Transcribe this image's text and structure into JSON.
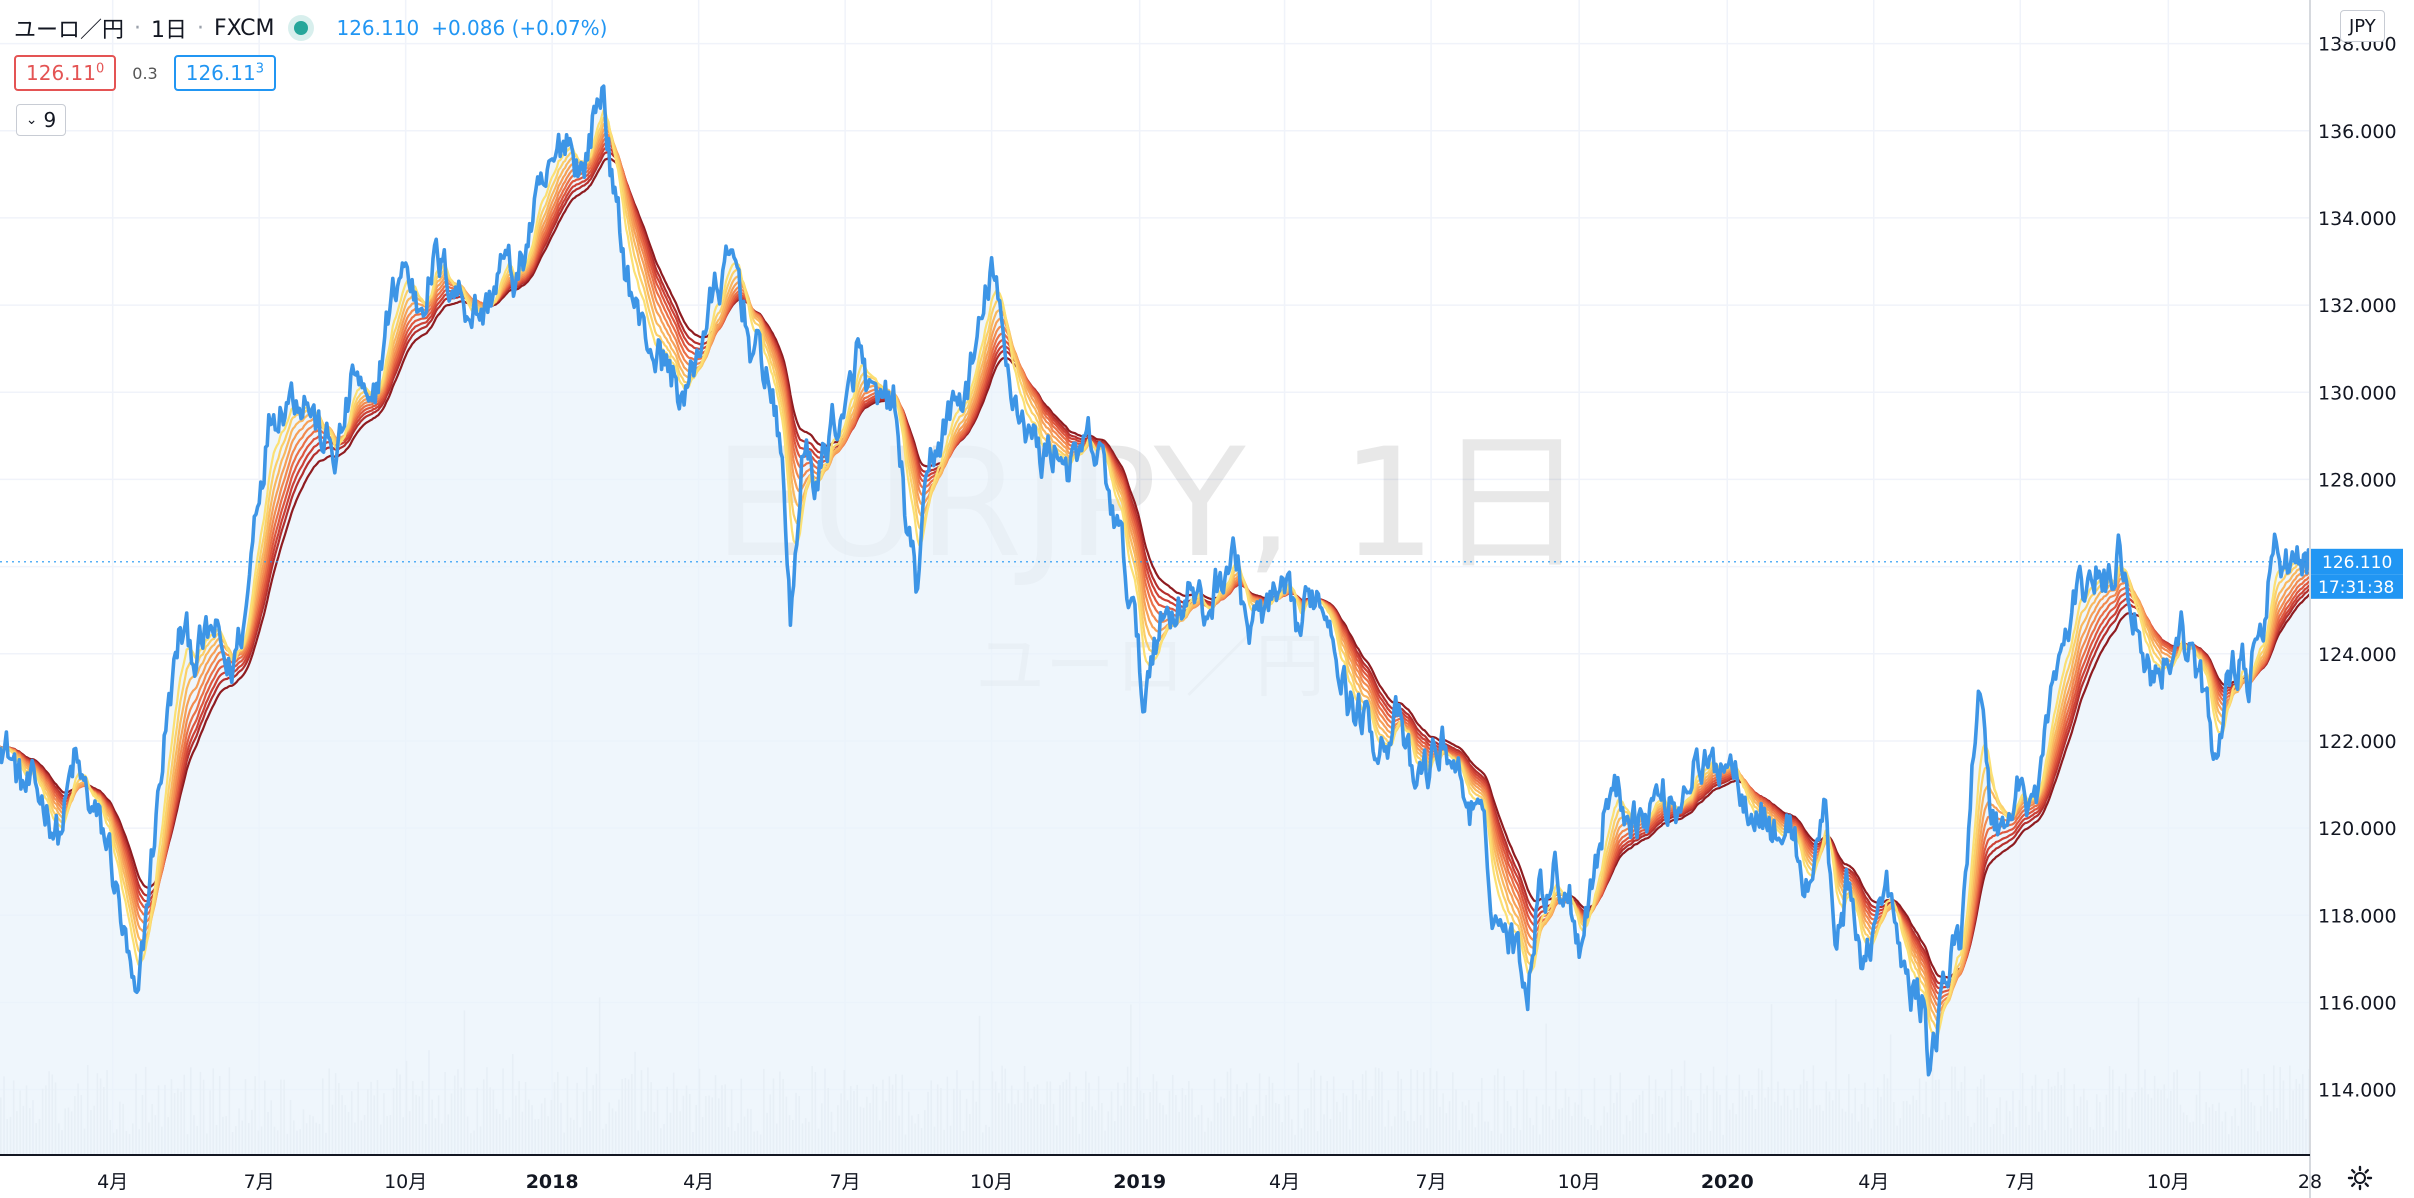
{
  "header": {
    "symbol": "ユーロ／円",
    "interval": "1日",
    "exchange": "FXCM",
    "last": "126.110",
    "change": "+0.086 (+0.07%)"
  },
  "quote": {
    "bid_main": "126.11",
    "bid_pip": "0",
    "spread": "0.3",
    "ask_main": "126.11",
    "ask_pip": "3"
  },
  "indicators_toggle": {
    "count": "9"
  },
  "currency_button": "JPY",
  "watermark": {
    "main": "EURJPY, 1日",
    "sub": "ユーロ／円"
  },
  "price_label": {
    "price": "126.110",
    "countdown": "17:31:38"
  },
  "colors": {
    "price_line": "#3d95e6",
    "area_fill": "#eaf3fb",
    "ribbon": [
      "#fbe074",
      "#fbd06a",
      "#f9b860",
      "#f6a058",
      "#f28a50",
      "#ea7047",
      "#de573e",
      "#cd4236",
      "#b5302e",
      "#8f1c20"
    ]
  },
  "chart_data": {
    "type": "line",
    "title": "EURJPY, 1日",
    "y_axis": {
      "ylim": [
        112.5,
        139.0
      ],
      "ticks": [
        "114.000",
        "116.000",
        "118.000",
        "120.000",
        "122.000",
        "124.000",
        "126.000",
        "128.000",
        "130.000",
        "132.000",
        "134.000",
        "136.000",
        "138.000"
      ],
      "position": "right"
    },
    "x_axis": {
      "xlim": [
        "2017-01-23",
        "2020-12-28"
      ],
      "ticks": [
        {
          "label": "4月",
          "date": "2017-04-03",
          "bold": false
        },
        {
          "label": "7月",
          "date": "2017-07-03",
          "bold": false
        },
        {
          "label": "10月",
          "date": "2017-10-02",
          "bold": false
        },
        {
          "label": "2018",
          "date": "2018-01-01",
          "bold": true
        },
        {
          "label": "4月",
          "date": "2018-04-02",
          "bold": false
        },
        {
          "label": "7月",
          "date": "2018-07-02",
          "bold": false
        },
        {
          "label": "10月",
          "date": "2018-10-01",
          "bold": false
        },
        {
          "label": "2019",
          "date": "2019-01-01",
          "bold": true
        },
        {
          "label": "4月",
          "date": "2019-04-01",
          "bold": false
        },
        {
          "label": "7月",
          "date": "2019-07-01",
          "bold": false
        },
        {
          "label": "10月",
          "date": "2019-10-01",
          "bold": false
        },
        {
          "label": "2020",
          "date": "2020-01-01",
          "bold": true
        },
        {
          "label": "4月",
          "date": "2020-04-01",
          "bold": false
        },
        {
          "label": "7月",
          "date": "2020-07-01",
          "bold": false
        },
        {
          "label": "10月",
          "date": "2020-10-01",
          "bold": false
        },
        {
          "label": "28",
          "date": "2020-12-28",
          "bold": false
        }
      ]
    },
    "grid": true,
    "legend": "none",
    "series": [
      {
        "name": "EURJPY",
        "points": [
          [
            "2017-01-23",
            122.3
          ],
          [
            "2017-02-05",
            121.0
          ],
          [
            "2017-02-20",
            120.6
          ],
          [
            "2017-03-01",
            119.8
          ],
          [
            "2017-03-10",
            121.5
          ],
          [
            "2017-03-20",
            120.5
          ],
          [
            "2017-04-01",
            119.5
          ],
          [
            "2017-04-10",
            117.5
          ],
          [
            "2017-04-18",
            115.6
          ],
          [
            "2017-04-25",
            118.5
          ],
          [
            "2017-05-05",
            122.0
          ],
          [
            "2017-05-15",
            124.5
          ],
          [
            "2017-05-25",
            124.0
          ],
          [
            "2017-06-05",
            124.5
          ],
          [
            "2017-06-15",
            123.5
          ],
          [
            "2017-06-25",
            125.0
          ],
          [
            "2017-07-01",
            127.5
          ],
          [
            "2017-07-10",
            129.5
          ],
          [
            "2017-07-20",
            130.0
          ],
          [
            "2017-08-01",
            130.0
          ],
          [
            "2017-08-10",
            129.0
          ],
          [
            "2017-08-20",
            128.5
          ],
          [
            "2017-09-01",
            130.5
          ],
          [
            "2017-09-10",
            129.2
          ],
          [
            "2017-09-20",
            131.5
          ],
          [
            "2017-09-30",
            133.0
          ],
          [
            "2017-10-10",
            132.0
          ],
          [
            "2017-10-20",
            133.0
          ],
          [
            "2017-11-01",
            132.5
          ],
          [
            "2017-11-10",
            132.0
          ],
          [
            "2017-11-20",
            131.8
          ],
          [
            "2017-12-01",
            133.0
          ],
          [
            "2017-12-10",
            132.5
          ],
          [
            "2017-12-20",
            134.0
          ],
          [
            "2018-01-01",
            135.0
          ],
          [
            "2018-01-10",
            136.0
          ],
          [
            "2018-01-20",
            135.0
          ],
          [
            "2018-01-28",
            136.5
          ],
          [
            "2018-02-02",
            137.0
          ],
          [
            "2018-02-08",
            134.5
          ],
          [
            "2018-02-15",
            133.0
          ],
          [
            "2018-02-25",
            131.5
          ],
          [
            "2018-03-05",
            131.0
          ],
          [
            "2018-03-15",
            130.5
          ],
          [
            "2018-03-25",
            129.8
          ],
          [
            "2018-04-05",
            131.5
          ],
          [
            "2018-04-15",
            132.5
          ],
          [
            "2018-04-25",
            133.0
          ],
          [
            "2018-05-05",
            131.0
          ],
          [
            "2018-05-15",
            130.5
          ],
          [
            "2018-05-25",
            128.0
          ],
          [
            "2018-05-29",
            124.5
          ],
          [
            "2018-06-05",
            128.5
          ],
          [
            "2018-06-15",
            128.0
          ],
          [
            "2018-06-25",
            129.5
          ],
          [
            "2018-07-01",
            129.0
          ],
          [
            "2018-07-10",
            131.0
          ],
          [
            "2018-07-20",
            129.5
          ],
          [
            "2018-08-01",
            129.8
          ],
          [
            "2018-08-10",
            126.8
          ],
          [
            "2018-08-15",
            125.5
          ],
          [
            "2018-08-25",
            128.5
          ],
          [
            "2018-09-05",
            129.5
          ],
          [
            "2018-09-15",
            130.0
          ],
          [
            "2018-09-25",
            131.5
          ],
          [
            "2018-10-01",
            133.0
          ],
          [
            "2018-10-10",
            130.5
          ],
          [
            "2018-10-20",
            129.5
          ],
          [
            "2018-11-01",
            128.5
          ],
          [
            "2018-11-10",
            128.8
          ],
          [
            "2018-11-20",
            128.2
          ],
          [
            "2018-12-01",
            128.8
          ],
          [
            "2018-12-10",
            128.2
          ],
          [
            "2018-12-20",
            126.5
          ],
          [
            "2018-12-28",
            125.0
          ],
          [
            "2019-01-03",
            122.8
          ],
          [
            "2019-01-10",
            124.5
          ],
          [
            "2019-01-20",
            125.0
          ],
          [
            "2019-02-01",
            125.5
          ],
          [
            "2019-02-10",
            124.8
          ],
          [
            "2019-02-20",
            125.8
          ],
          [
            "2019-03-01",
            126.3
          ],
          [
            "2019-03-10",
            124.5
          ],
          [
            "2019-03-20",
            125.0
          ],
          [
            "2019-04-01",
            125.2
          ],
          [
            "2019-04-10",
            124.5
          ],
          [
            "2019-04-20",
            125.5
          ],
          [
            "2019-05-01",
            124.8
          ],
          [
            "2019-05-10",
            123.0
          ],
          [
            "2019-05-20",
            122.5
          ],
          [
            "2019-06-01",
            122.0
          ],
          [
            "2019-06-10",
            122.5
          ],
          [
            "2019-06-20",
            121.0
          ],
          [
            "2019-07-01",
            121.5
          ],
          [
            "2019-07-10",
            122.0
          ],
          [
            "2019-07-20",
            121.0
          ],
          [
            "2019-08-01",
            120.0
          ],
          [
            "2019-08-10",
            118.0
          ],
          [
            "2019-08-20",
            117.5
          ],
          [
            "2019-08-30",
            116.5
          ],
          [
            "2019-09-05",
            118.5
          ],
          [
            "2019-09-15",
            119.0
          ],
          [
            "2019-09-25",
            118.5
          ],
          [
            "2019-10-01",
            117.5
          ],
          [
            "2019-10-10",
            119.0
          ],
          [
            "2019-10-20",
            121.0
          ],
          [
            "2019-11-01",
            120.5
          ],
          [
            "2019-11-10",
            120.2
          ],
          [
            "2019-11-20",
            120.8
          ],
          [
            "2019-12-01",
            120.5
          ],
          [
            "2019-12-10",
            121.5
          ],
          [
            "2019-12-20",
            121.2
          ],
          [
            "2020-01-01",
            121.8
          ],
          [
            "2020-01-10",
            121.0
          ],
          [
            "2020-01-20",
            120.5
          ],
          [
            "2020-02-01",
            119.8
          ],
          [
            "2020-02-10",
            120.0
          ],
          [
            "2020-02-20",
            118.5
          ],
          [
            "2020-03-01",
            120.5
          ],
          [
            "2020-03-09",
            117.5
          ],
          [
            "2020-03-15",
            118.5
          ],
          [
            "2020-03-25",
            117.0
          ],
          [
            "2020-04-01",
            117.8
          ],
          [
            "2020-04-10",
            118.5
          ],
          [
            "2020-04-20",
            116.5
          ],
          [
            "2020-05-01",
            116.0
          ],
          [
            "2020-05-06",
            114.5
          ],
          [
            "2020-05-15",
            116.5
          ],
          [
            "2020-05-25",
            117.5
          ],
          [
            "2020-06-05",
            123.5
          ],
          [
            "2020-06-12",
            120.5
          ],
          [
            "2020-06-20",
            120.0
          ],
          [
            "2020-07-01",
            121.0
          ],
          [
            "2020-07-10",
            120.5
          ],
          [
            "2020-07-20",
            123.0
          ],
          [
            "2020-08-01",
            124.8
          ],
          [
            "2020-08-15",
            126.0
          ],
          [
            "2020-08-25",
            125.5
          ],
          [
            "2020-09-01",
            126.5
          ],
          [
            "2020-09-10",
            125.0
          ],
          [
            "2020-09-20",
            123.5
          ],
          [
            "2020-10-01",
            124.0
          ],
          [
            "2020-10-10",
            124.5
          ],
          [
            "2020-10-20",
            123.5
          ],
          [
            "2020-10-30",
            121.7
          ],
          [
            "2020-11-10",
            124.0
          ],
          [
            "2020-11-20",
            123.5
          ],
          [
            "2020-11-30",
            124.5
          ],
          [
            "2020-12-05",
            126.5
          ],
          [
            "2020-12-15",
            126.0
          ],
          [
            "2020-12-28",
            126.11
          ]
        ]
      }
    ]
  }
}
